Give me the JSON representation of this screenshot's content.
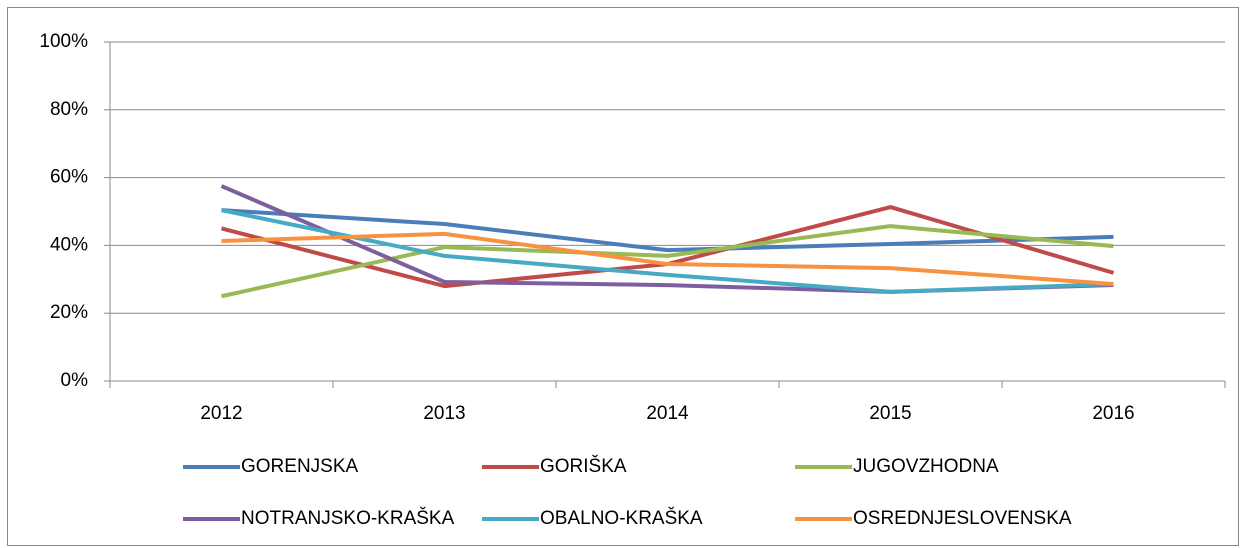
{
  "chart_data": {
    "type": "line",
    "categories": [
      "2012",
      "2013",
      "2014",
      "2015",
      "2016"
    ],
    "series": [
      {
        "name": "GORENJSKA",
        "color": "#4a7ebb",
        "values": [
          50.4,
          46.3,
          38.6,
          40.4,
          42.5
        ]
      },
      {
        "name": "GORIŠKA",
        "color": "#be4b48",
        "values": [
          45,
          28,
          34.5,
          51.3,
          31.9
        ]
      },
      {
        "name": "JUGOVZHODNA",
        "color": "#98b954",
        "values": [
          25,
          39.5,
          36.9,
          45.7,
          39.8
        ]
      },
      {
        "name": "NOTRANJSKO-KRAŠKA",
        "color": "#7d5fa0",
        "values": [
          57.5,
          29.2,
          28.3,
          26.3,
          28.3
        ]
      },
      {
        "name": "OBALNO-KRAŠKA",
        "color": "#46aac5",
        "values": [
          50.4,
          36.9,
          31.3,
          26.3,
          28.6
        ]
      },
      {
        "name": "OSREDNJESLOVENSKA",
        "color": "#f69240",
        "values": [
          41.3,
          43.4,
          34.5,
          33.3,
          28.6
        ]
      }
    ],
    "ylim": [
      0,
      100
    ],
    "yticks": [
      {
        "value": 0,
        "label": "0%"
      },
      {
        "value": 20,
        "label": "20%"
      },
      {
        "value": 40,
        "label": "40%"
      },
      {
        "value": 60,
        "label": "60%"
      },
      {
        "value": 80,
        "label": "80%"
      },
      {
        "value": 100,
        "label": "100%"
      }
    ],
    "grid": true,
    "legend": "bottom"
  }
}
